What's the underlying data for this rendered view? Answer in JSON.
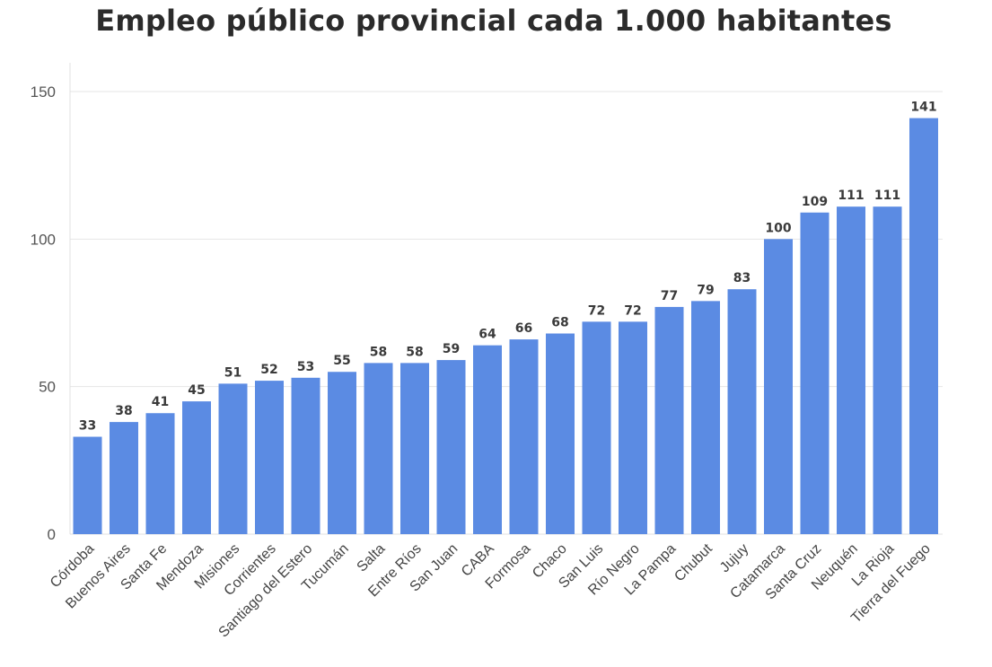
{
  "chart_data": {
    "type": "bar",
    "title": "Empleo público provincial cada 1.000 habitantes",
    "xlabel": "",
    "ylabel": "",
    "ylim": [
      0,
      150
    ],
    "yticks": [
      0,
      50,
      100,
      150
    ],
    "grid": true,
    "bar_color": "#5b8be3",
    "categories": [
      "Córdoba",
      "Buenos Aires",
      "Santa Fe",
      "Mendoza",
      "Misiones",
      "Corrientes",
      "Santiago del Estero",
      "Tucumán",
      "Salta",
      "Entre Ríos",
      "San Juan",
      "CABA",
      "Formosa",
      "Chaco",
      "San Luis",
      "Río Negro",
      "La Pampa",
      "Chubut",
      "Jujuy",
      "Catamarca",
      "Santa Cruz",
      "Neuquén",
      "La Rioja",
      "Tierra del Fuego"
    ],
    "values": [
      33,
      38,
      41,
      45,
      51,
      52,
      53,
      55,
      58,
      58,
      59,
      64,
      66,
      68,
      72,
      72,
      77,
      79,
      83,
      100,
      109,
      111,
      111,
      141
    ]
  }
}
